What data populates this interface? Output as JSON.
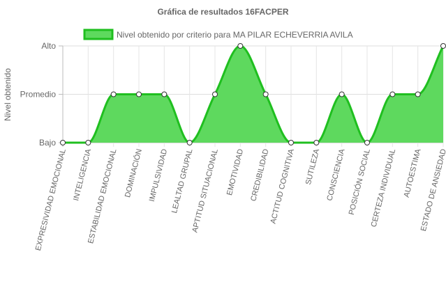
{
  "chart_data": {
    "type": "area",
    "title": "Gráfica de resultados 16FACPER",
    "xlabel": "",
    "ylabel": "Nivel obtenido",
    "y_levels": [
      "Bajo",
      "Promedio",
      "Alto"
    ],
    "ylim": [
      0,
      2
    ],
    "grid": true,
    "legend_position": "top",
    "categories": [
      "EXPRESIVIDAD EMOCIONAL",
      "INTELIGENCIA",
      "ESTABILIDAD EMOCIONAL",
      "DOMINACIÓN",
      "IMPULSIVIDAD",
      "LEALTAD GRUPAL",
      "APTITUD SITUACIONAL",
      "EMOTIVIDAD",
      "CREDIBILIDAD",
      "ACTITUD COGNITIVA",
      "SUTILEZA",
      "CONSCIENCIA",
      "POSICIÓN SOCIAL",
      "CERTEZA INDIVIDUAL",
      "AUTOESTIMA",
      "ESTADO DE ANSIEDAD"
    ],
    "series": [
      {
        "name": "Nivel obtenido por criterio para MA PILAR ECHEVERRIA AVILA",
        "values": [
          0,
          0,
          1,
          1,
          1,
          0,
          1,
          2,
          1,
          0,
          0,
          1,
          0,
          1,
          1,
          2
        ],
        "color": "#1fbf1f",
        "fill": "#5ed95e"
      }
    ]
  }
}
